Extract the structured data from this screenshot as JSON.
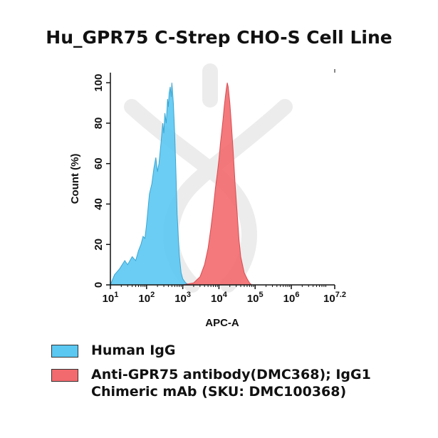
{
  "chart_data": {
    "type": "area",
    "title": "Hu_GPR75 C-Strep CHO-S Cell Line",
    "xlabel": "APC-A",
    "ylabel": "Count  (%)",
    "x_scale": "log",
    "xlim": [
      10,
      15848932
    ],
    "ylim": [
      0,
      105
    ],
    "x_tick_labels": [
      {
        "base": "10",
        "exp": "1",
        "value": 10
      },
      {
        "base": "10",
        "exp": "2",
        "value": 100
      },
      {
        "base": "10",
        "exp": "3",
        "value": 1000
      },
      {
        "base": "10",
        "exp": "4",
        "value": 10000
      },
      {
        "base": "10",
        "exp": "5",
        "value": 100000
      },
      {
        "base": "10",
        "exp": "6",
        "value": 1000000
      },
      {
        "base": "10",
        "exp": "7.2",
        "value": 15848932
      }
    ],
    "y_ticks": [
      0,
      20,
      40,
      60,
      80,
      100
    ],
    "grid": false,
    "legend_position": "bottom",
    "series": [
      {
        "name": "Human IgG",
        "color": "#5bc8f2",
        "x": [
          10,
          13,
          18,
          25,
          30,
          40,
          50,
          60,
          70,
          80,
          90,
          100,
          120,
          140,
          160,
          180,
          200,
          220,
          250,
          280,
          300,
          320,
          350,
          380,
          400,
          420,
          450,
          480,
          500,
          520,
          550,
          600,
          650,
          700,
          800,
          900,
          1000,
          1200,
          1500
        ],
        "y": [
          0,
          5,
          8,
          12,
          10,
          14,
          12,
          17,
          20,
          24,
          23,
          30,
          45,
          50,
          58,
          63,
          56,
          60,
          70,
          80,
          75,
          85,
          80,
          92,
          88,
          95,
          98,
          93,
          100,
          96,
          90,
          75,
          55,
          35,
          15,
          6,
          3,
          1,
          0
        ]
      },
      {
        "name": "Anti-GPR75 antibody(DMC368); IgG1 Chimeric mAb (SKU: DMC100368)",
        "color": "#f26a6e",
        "x": [
          1000,
          2000,
          3000,
          4000,
          5000,
          6000,
          7000,
          8000,
          9000,
          10000,
          11000,
          12000,
          13000,
          14000,
          15000,
          16000,
          17000,
          18000,
          20000,
          22000,
          25000,
          28000,
          32000,
          36000,
          40000,
          50000,
          60000,
          70000,
          80000,
          100000
        ],
        "y": [
          0,
          1,
          4,
          10,
          18,
          28,
          38,
          48,
          55,
          62,
          70,
          76,
          82,
          88,
          93,
          97,
          100,
          98,
          90,
          80,
          65,
          50,
          35,
          22,
          14,
          6,
          3,
          1,
          0,
          0
        ]
      }
    ]
  }
}
